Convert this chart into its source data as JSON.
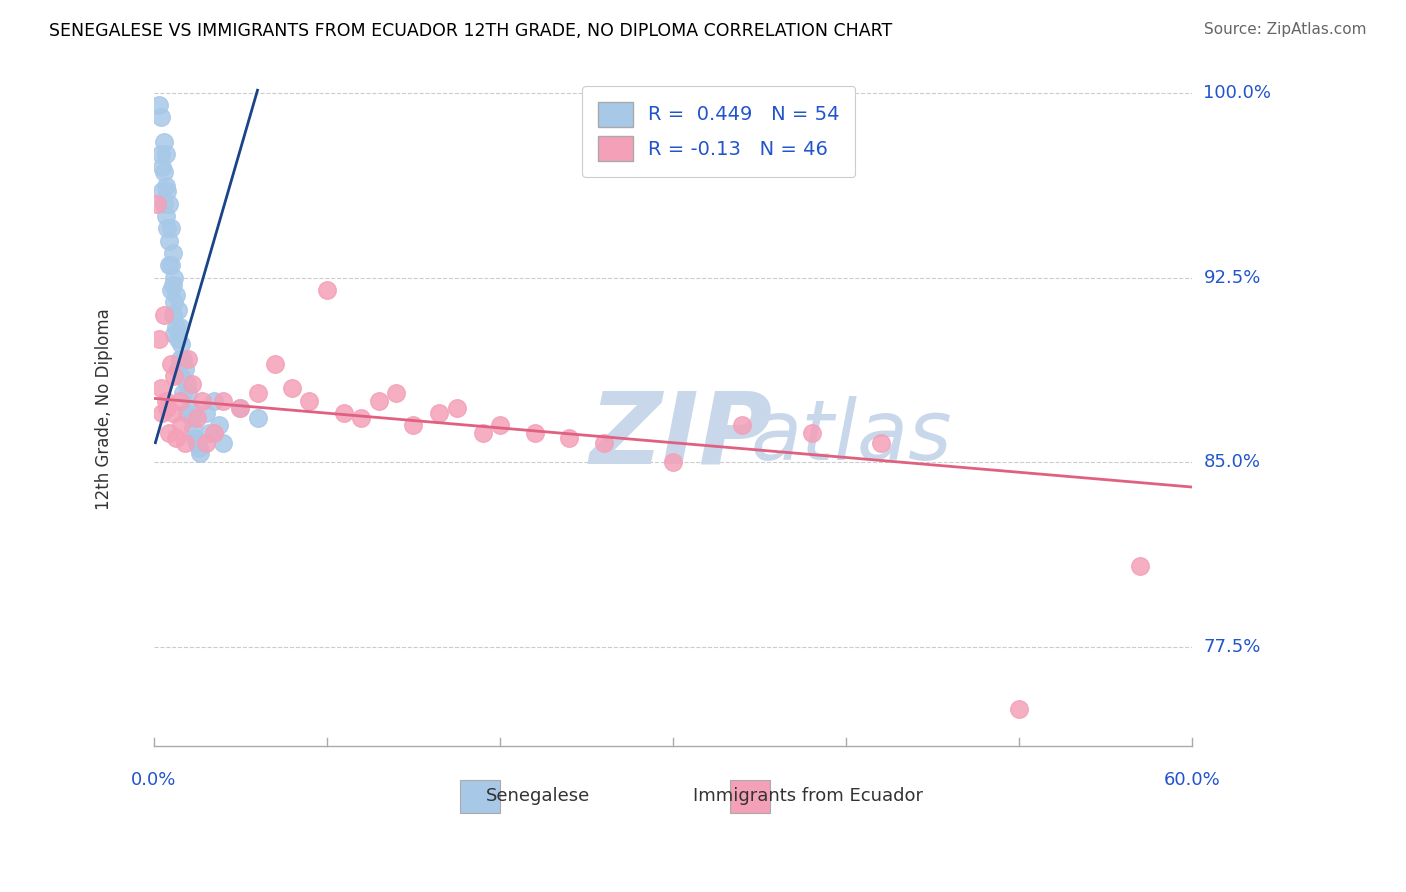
{
  "title": "SENEGALESE VS IMMIGRANTS FROM ECUADOR 12TH GRADE, NO DIPLOMA CORRELATION CHART",
  "source": "Source: ZipAtlas.com",
  "xmin": 0.0,
  "xmax": 0.6,
  "ymin": 0.735,
  "ymax": 1.008,
  "blue_R": 0.449,
  "blue_N": 54,
  "pink_R": -0.13,
  "pink_N": 46,
  "blue_color": "#a8c8e8",
  "blue_line_color": "#1a4488",
  "pink_color": "#f4a0b8",
  "pink_line_color": "#e06080",
  "background_color": "#ffffff",
  "grid_color": "#cccccc",
  "title_color": "#000000",
  "axis_label_color": "#2255cc",
  "watermark_color": "#c8d8ea",
  "ytick_values": [
    1.0,
    0.925,
    0.85,
    0.775
  ],
  "ytick_labels": [
    "100.0%",
    "92.5%",
    "85.0%",
    "77.5%"
  ],
  "blue_scatter_x": [
    0.003,
    0.004,
    0.004,
    0.005,
    0.005,
    0.006,
    0.006,
    0.006,
    0.007,
    0.007,
    0.007,
    0.008,
    0.008,
    0.009,
    0.009,
    0.009,
    0.01,
    0.01,
    0.01,
    0.011,
    0.011,
    0.011,
    0.012,
    0.012,
    0.012,
    0.013,
    0.013,
    0.014,
    0.014,
    0.014,
    0.015,
    0.015,
    0.016,
    0.016,
    0.017,
    0.017,
    0.018,
    0.019,
    0.019,
    0.02,
    0.021,
    0.022,
    0.023,
    0.024,
    0.025,
    0.026,
    0.027,
    0.03,
    0.032,
    0.035,
    0.038,
    0.04,
    0.05,
    0.06
  ],
  "blue_scatter_y": [
    0.995,
    0.99,
    0.975,
    0.97,
    0.96,
    0.98,
    0.968,
    0.955,
    0.975,
    0.962,
    0.95,
    0.96,
    0.945,
    0.955,
    0.94,
    0.93,
    0.945,
    0.93,
    0.92,
    0.935,
    0.922,
    0.91,
    0.925,
    0.915,
    0.902,
    0.918,
    0.905,
    0.912,
    0.9,
    0.888,
    0.905,
    0.892,
    0.898,
    0.885,
    0.892,
    0.878,
    0.888,
    0.882,
    0.87,
    0.878,
    0.872,
    0.868,
    0.864,
    0.86,
    0.858,
    0.856,
    0.854,
    0.87,
    0.862,
    0.875,
    0.865,
    0.858,
    0.872,
    0.868
  ],
  "pink_scatter_x": [
    0.002,
    0.003,
    0.004,
    0.005,
    0.006,
    0.007,
    0.008,
    0.009,
    0.01,
    0.011,
    0.012,
    0.013,
    0.015,
    0.016,
    0.018,
    0.02,
    0.022,
    0.025,
    0.028,
    0.03,
    0.035,
    0.04,
    0.05,
    0.06,
    0.07,
    0.08,
    0.09,
    0.1,
    0.11,
    0.12,
    0.13,
    0.14,
    0.15,
    0.165,
    0.175,
    0.19,
    0.2,
    0.22,
    0.24,
    0.26,
    0.3,
    0.34,
    0.38,
    0.42,
    0.5,
    0.57
  ],
  "pink_scatter_y": [
    0.955,
    0.9,
    0.88,
    0.87,
    0.91,
    0.875,
    0.872,
    0.862,
    0.89,
    0.87,
    0.885,
    0.86,
    0.875,
    0.865,
    0.858,
    0.892,
    0.882,
    0.868,
    0.875,
    0.858,
    0.862,
    0.875,
    0.872,
    0.878,
    0.89,
    0.88,
    0.875,
    0.92,
    0.87,
    0.868,
    0.875,
    0.878,
    0.865,
    0.87,
    0.872,
    0.862,
    0.865,
    0.862,
    0.86,
    0.858,
    0.85,
    0.865,
    0.862,
    0.858,
    0.75,
    0.808
  ],
  "blue_trendline_x": [
    0.001,
    0.06
  ],
  "blue_trendline_y": [
    0.858,
    1.001
  ],
  "pink_trendline_x": [
    0.0,
    0.6
  ],
  "pink_trendline_y": [
    0.876,
    0.84
  ]
}
